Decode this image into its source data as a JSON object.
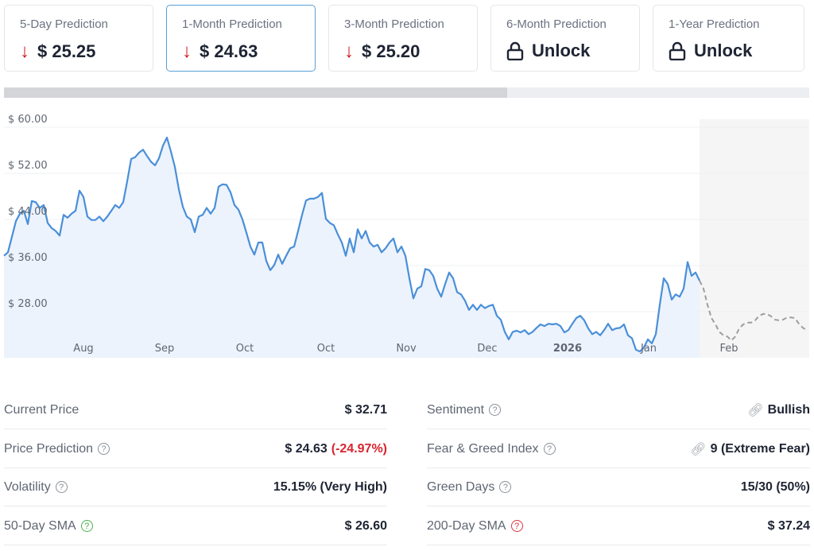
{
  "cards": [
    {
      "label": "5-Day Prediction",
      "value": "$ 25.25",
      "icon": "arrow-down-icon"
    },
    {
      "label": "1-Month Prediction",
      "value": "$ 24.63",
      "icon": "arrow-down-icon"
    },
    {
      "label": "3-Month Prediction",
      "value": "$ 25.20",
      "icon": "arrow-down-icon"
    },
    {
      "label": "6-Month Prediction",
      "value": "Unlock",
      "icon": "lock-icon"
    },
    {
      "label": "1-Year Prediction",
      "value": "Unlock",
      "icon": "lock-icon"
    }
  ],
  "colors": {
    "line": "#4a8fd9",
    "fill": "#eaf2fc",
    "forecast": "#9e9e9e",
    "down": "#d0141e",
    "bullish": "#3fb93a"
  },
  "chart_data": {
    "type": "line",
    "ylim": [
      20,
      60
    ],
    "yticks": [
      {
        "v": 60,
        "label": "$ 60.00"
      },
      {
        "v": 52,
        "label": "$ 52.00"
      },
      {
        "v": 44,
        "label": "$ 44.00"
      },
      {
        "v": 36,
        "label": "$ 36.00"
      },
      {
        "v": 28,
        "label": "$ 28.00"
      }
    ],
    "xticks": [
      {
        "i": 20,
        "label": "Aug"
      },
      {
        "i": 40.4,
        "label": "Sep"
      },
      {
        "i": 60.6,
        "label": "Oct"
      },
      {
        "i": 81,
        "label": "Oct"
      },
      {
        "i": 101.2,
        "label": "Nov"
      },
      {
        "i": 121.6,
        "label": "Dec"
      },
      {
        "i": 141.8,
        "label": "2026",
        "bold": true
      },
      {
        "i": 162.2,
        "label": "Jan"
      },
      {
        "i": 182.4,
        "label": "Feb"
      }
    ],
    "xlim": [
      0,
      202
    ],
    "series": [
      {
        "name": "Price",
        "style": "solid",
        "start": 0,
        "values": [
          37.7,
          38.3,
          41,
          43.7,
          45,
          45.5,
          43.2,
          47.2,
          47,
          46,
          46.5,
          43.4,
          42.5,
          42,
          41.2,
          44.8,
          44.3,
          45,
          45.5,
          49,
          47.9,
          44.5,
          43.9,
          43.9,
          44.5,
          43.7,
          44.5,
          45.5,
          46.5,
          46,
          47,
          50.6,
          54.5,
          54.8,
          55.6,
          56.1,
          55,
          54,
          53.4,
          54.6,
          56.8,
          58.2,
          55.8,
          53.1,
          49.2,
          46.2,
          44.5,
          44,
          41.8,
          44.5,
          44.8,
          46,
          45,
          46,
          49.7,
          50.1,
          50,
          48.7,
          46.5,
          45.7,
          44,
          41.7,
          39.3,
          37.9,
          40,
          40,
          36.8,
          35.2,
          36.1,
          37.9,
          36.3,
          37.7,
          39,
          39.3,
          42,
          44.8,
          47.3,
          47.6,
          47.6,
          47.9,
          48.6,
          44.1,
          43.4,
          43,
          41.4,
          40,
          37.7,
          40.7,
          38.3,
          42.3,
          40.7,
          42,
          40,
          39.3,
          39.6,
          38.3,
          39,
          40,
          40.7,
          38.3,
          39.3,
          37.7,
          33.8,
          30.3,
          32,
          32.4,
          35.4,
          35.2,
          34.2,
          32,
          30.6,
          32.8,
          34.8,
          33.8,
          31.4,
          31,
          29.9,
          28.3,
          29.2,
          28.3,
          29.2,
          28.6,
          29,
          29.2,
          27.3,
          26.6,
          24.5,
          23.2,
          24.5,
          24.7,
          24.4,
          24.8,
          24.1,
          24.5,
          25.2,
          25.8,
          25.5,
          25.9,
          25.8,
          25.9,
          25.5,
          24.4,
          24.8,
          25.9,
          26.9,
          27.3,
          26.5,
          25.1,
          24.1,
          24.5,
          23.9,
          24.8,
          25.9,
          24.8,
          25.1,
          25.2,
          25.8,
          23.9,
          23.4,
          21.4,
          21.1,
          21.8,
          23.2,
          22.5,
          24.1,
          29.2,
          33.8,
          32.8,
          30.1,
          31,
          30.6,
          32,
          36.6,
          34.2,
          34.8,
          33.4
        ]
      },
      {
        "name": "Forecast",
        "style": "dashed",
        "start": 175,
        "values": [
          33.4,
          32,
          29.2,
          26.9,
          25.8,
          24.5,
          23.9,
          23.7,
          23,
          23.7,
          25.1,
          25.8,
          26.1,
          26.1,
          26.5,
          27.3,
          27.6,
          27.6,
          27.2,
          26.6,
          26.5,
          26.6,
          27,
          27,
          26.9,
          25.9,
          25.2,
          24.8
        ]
      }
    ]
  },
  "stats_left": [
    {
      "label": "Current Price",
      "value": "$ 32.71"
    },
    {
      "label": "Price Prediction",
      "value": "$ 24.63",
      "extra": "(-24.97%)"
    },
    {
      "label": "Volatility",
      "value": "15.15% (Very High)"
    },
    {
      "label": "50-Day SMA",
      "value": "$ 26.60"
    }
  ],
  "stats_right": [
    {
      "label": "Sentiment",
      "value": "Bullish"
    },
    {
      "label": "Fear & Greed Index",
      "value": "9 (Extreme Fear)"
    },
    {
      "label": "Green Days",
      "value": "15/30 (50%)"
    },
    {
      "label": "200-Day SMA",
      "value": "$ 37.24"
    }
  ]
}
